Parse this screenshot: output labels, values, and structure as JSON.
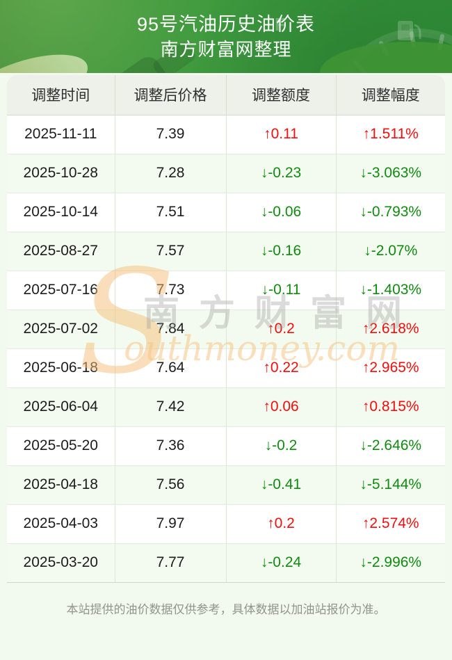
{
  "banner": {
    "title": "95号汽油历史油价表",
    "subtitle": "南方财富网整理"
  },
  "chart_data": {
    "type": "table",
    "title": "95号汽油历史油价表",
    "subtitle": "南方财富网整理",
    "columns": [
      "调整时间",
      "调整后价格",
      "调整额度",
      "调整幅度"
    ],
    "rows": [
      {
        "date": "2025-11-11",
        "price": "7.39",
        "change": "↑0.11",
        "pct": "↑1.511%",
        "direction": "up"
      },
      {
        "date": "2025-10-28",
        "price": "7.28",
        "change": "↓-0.23",
        "pct": "↓-3.063%",
        "direction": "down"
      },
      {
        "date": "2025-10-14",
        "price": "7.51",
        "change": "↓-0.06",
        "pct": "↓-0.793%",
        "direction": "down"
      },
      {
        "date": "2025-08-27",
        "price": "7.57",
        "change": "↓-0.16",
        "pct": "↓-2.07%",
        "direction": "down"
      },
      {
        "date": "2025-07-16",
        "price": "7.73",
        "change": "↓-0.11",
        "pct": "↓-1.403%",
        "direction": "down"
      },
      {
        "date": "2025-07-02",
        "price": "7.84",
        "change": "↑0.2",
        "pct": "↑2.618%",
        "direction": "up"
      },
      {
        "date": "2025-06-18",
        "price": "7.64",
        "change": "↑0.22",
        "pct": "↑2.965%",
        "direction": "up"
      },
      {
        "date": "2025-06-04",
        "price": "7.42",
        "change": "↑0.06",
        "pct": "↑0.815%",
        "direction": "up"
      },
      {
        "date": "2025-05-20",
        "price": "7.36",
        "change": "↓-0.2",
        "pct": "↓-2.646%",
        "direction": "down"
      },
      {
        "date": "2025-04-18",
        "price": "7.56",
        "change": "↓-0.41",
        "pct": "↓-5.144%",
        "direction": "down"
      },
      {
        "date": "2025-04-03",
        "price": "7.97",
        "change": "↑0.2",
        "pct": "↑2.574%",
        "direction": "up"
      },
      {
        "date": "2025-03-20",
        "price": "7.77",
        "change": "↓-0.24",
        "pct": "↓-2.996%",
        "direction": "down"
      }
    ]
  },
  "watermark": {
    "s": "S",
    "cn": "南方财富网",
    "en": "outhmoney.com"
  },
  "footer": {
    "note": "本站提供的油价数据仅供参考，具体数据以加油站报价为准。"
  },
  "colors": {
    "up_red": "#f50d0d",
    "down_green": "#0f8c0f",
    "banner_green": "#3f9a3e",
    "header_row_bg": "#edf1e9",
    "alt_row_bg": "#f3faef",
    "page_bg": "#f2f9ee"
  }
}
